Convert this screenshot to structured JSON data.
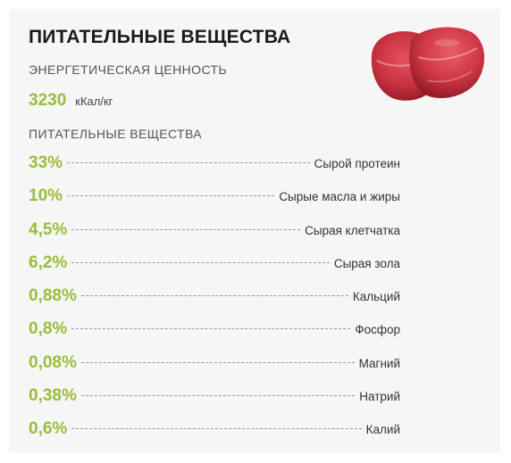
{
  "title": "ПИТАТЕЛЬНЫЕ ВЕЩЕСТВА",
  "energy_heading": "ЭНЕРГЕТИЧЕСКАЯ ЦЕННОСТЬ",
  "energy": {
    "value": "3230",
    "unit": "кКал/кг"
  },
  "nutrients_heading": "ПИТАТЕЛЬНЫЕ ВЕЩЕСТВА",
  "nutrients": [
    {
      "percent": "33%",
      "name": "Сырой протеин"
    },
    {
      "percent": "10%",
      "name": "Сырые масла и жиры"
    },
    {
      "percent": "4,5%",
      "name": "Сырая клетчатка"
    },
    {
      "percent": "6,2%",
      "name": "Сырая зола"
    },
    {
      "percent": "0,88%",
      "name": "Кальций"
    },
    {
      "percent": "0,8%",
      "name": "Фосфор"
    },
    {
      "percent": "0,08%",
      "name": "Магний"
    },
    {
      "percent": "0,38%",
      "name": "Натрий"
    },
    {
      "percent": "0,6%",
      "name": "Калий"
    }
  ],
  "colors": {
    "accent": "#9bbd3a",
    "panel": "#f6f6f6",
    "meat": "#c8313f"
  }
}
